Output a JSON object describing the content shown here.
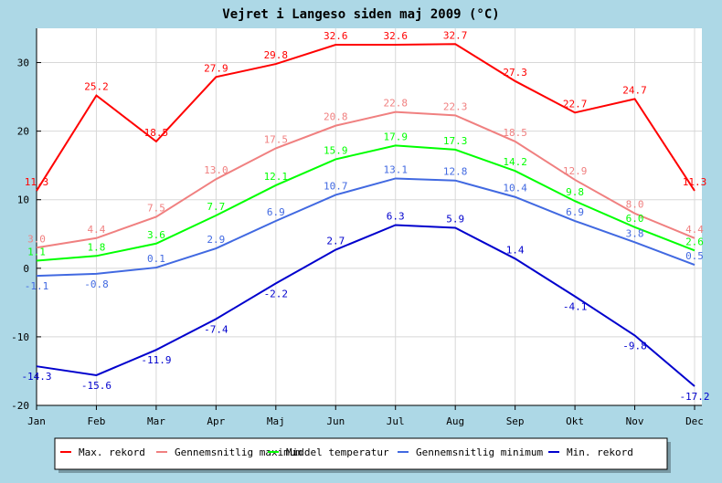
{
  "chart_data": {
    "type": "line",
    "title": "Vejret i Langeso siden maj 2009 (°C)",
    "categories": [
      "Jan",
      "Feb",
      "Mar",
      "Apr",
      "Maj",
      "Jun",
      "Jul",
      "Aug",
      "Sep",
      "Okt",
      "Nov",
      "Dec"
    ],
    "ylim": [
      -20,
      35
    ],
    "yticks": [
      -20,
      -10,
      0,
      10,
      20,
      30
    ],
    "grid": true,
    "legend_position": "bottom",
    "series": [
      {
        "name": "Max. rekord",
        "color": "#ff0000",
        "values": [
          11.3,
          25.2,
          18.5,
          27.9,
          29.8,
          32.6,
          32.6,
          32.7,
          27.3,
          22.7,
          24.7,
          11.3
        ]
      },
      {
        "name": "Gennemsnitlig maximum",
        "color": "#f08080",
        "values": [
          3.0,
          4.4,
          7.5,
          13.0,
          17.5,
          20.8,
          22.8,
          22.3,
          18.5,
          12.9,
          8.0,
          4.4
        ]
      },
      {
        "name": "Middel temperatur",
        "color": "#00ff00",
        "values": [
          1.1,
          1.8,
          3.6,
          7.7,
          12.1,
          15.9,
          17.9,
          17.3,
          14.2,
          9.8,
          6.0,
          2.6
        ]
      },
      {
        "name": "Gennemsnitlig minimum",
        "color": "#4169e1",
        "values": [
          -1.1,
          -0.8,
          0.1,
          2.9,
          6.9,
          10.7,
          13.1,
          12.8,
          10.4,
          6.9,
          3.8,
          0.5
        ]
      },
      {
        "name": "Min. rekord",
        "color": "#0000cd",
        "values": [
          -14.3,
          -15.6,
          -11.9,
          -7.4,
          -2.2,
          2.7,
          6.3,
          5.9,
          1.4,
          -4.1,
          -9.8,
          -17.2
        ]
      }
    ]
  }
}
